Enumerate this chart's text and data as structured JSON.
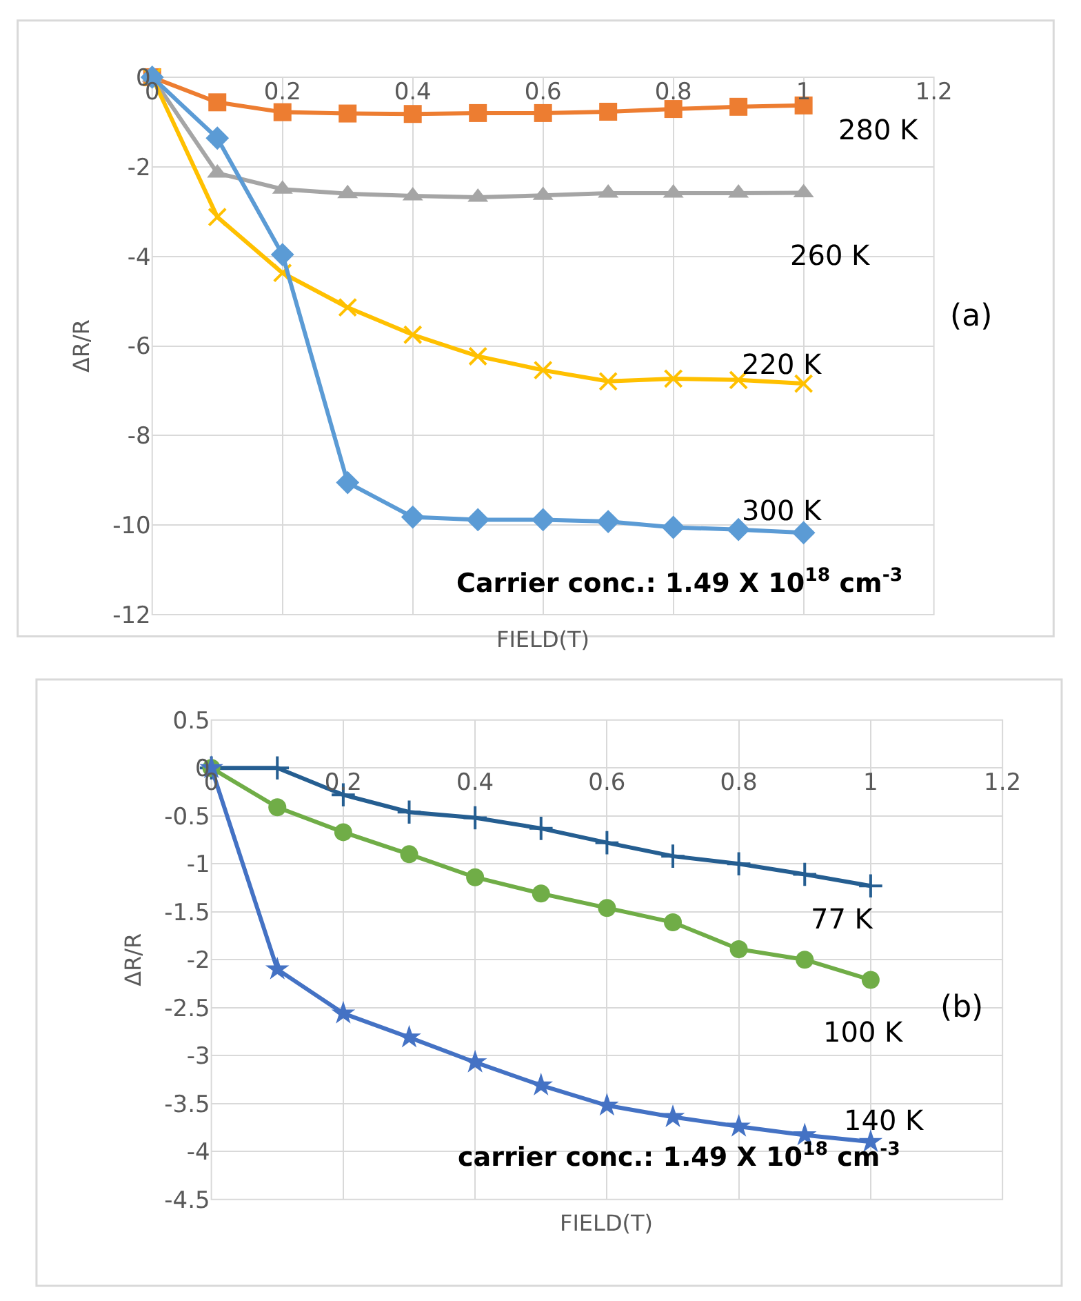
{
  "chart_data": [
    {
      "type": "line",
      "xlabel": "FIELD(T)",
      "ylabel": "ΔR/R",
      "x": [
        0,
        0.1,
        0.2,
        0.3,
        0.4,
        0.5,
        0.6,
        0.7,
        0.8,
        0.9,
        1.0
      ],
      "xlim": [
        0,
        1.2
      ],
      "xticks": [
        0,
        0.2,
        0.4,
        0.6,
        0.8,
        1,
        1.2
      ],
      "ylim": [
        -12,
        0
      ],
      "yticks": [
        -12,
        -10,
        -8,
        -6,
        -4,
        -2,
        0
      ],
      "grid": true,
      "line_style": "solid",
      "annotations": [
        "(a)",
        "Carrier conc.: 1.49 X 10$^{18}$ cm$^{-3}$"
      ],
      "series": [
        {
          "name": "280 K",
          "color": "#ed7d31",
          "marker": "square",
          "values": [
            0,
            -0.56,
            -0.78,
            -0.81,
            -0.82,
            -0.8,
            -0.8,
            -0.77,
            -0.71,
            -0.66,
            -0.63
          ]
        },
        {
          "name": "260 K",
          "color": "#a5a5a5",
          "marker": "triangle",
          "values": [
            0,
            -2.14,
            -2.5,
            -2.6,
            -2.65,
            -2.68,
            -2.64,
            -2.59,
            -2.59,
            -2.59,
            -2.58
          ]
        },
        {
          "name": "220 K",
          "color": "#ffc000",
          "marker": "cross",
          "values": [
            0,
            -3.12,
            -4.37,
            -5.14,
            -5.75,
            -6.23,
            -6.54,
            -6.79,
            -6.73,
            -6.76,
            -6.84
          ]
        },
        {
          "name": "300 K",
          "color": "#5b9bd5",
          "marker": "diamond",
          "values": [
            0,
            -1.36,
            -3.96,
            -9.05,
            -9.82,
            -9.88,
            -9.88,
            -9.92,
            -10.05,
            -10.1,
            -10.17
          ]
        }
      ]
    },
    {
      "type": "line",
      "xlabel": "FIELD(T)",
      "ylabel": "ΔR/R",
      "x": [
        0,
        0.1,
        0.2,
        0.3,
        0.4,
        0.5,
        0.6,
        0.7,
        0.8,
        0.9,
        1.0
      ],
      "xlim": [
        0,
        1.2
      ],
      "xticks": [
        0,
        0.2,
        0.4,
        0.6,
        0.8,
        1,
        1.2
      ],
      "ylim": [
        -4.5,
        0.5
      ],
      "yticks": [
        -4.5,
        -4,
        -3.5,
        -3,
        -2.5,
        -2,
        -1.5,
        -1,
        -0.5,
        0,
        0.5
      ],
      "grid": true,
      "line_style": "solid",
      "annotations": [
        "(b)",
        "carrier conc.: 1.49 X 10$^{18}$ cm$^{-3}$"
      ],
      "series": [
        {
          "name": "77 K",
          "color": "#255e91",
          "marker": "cross",
          "values": [
            0,
            0,
            -0.28,
            -0.46,
            -0.52,
            -0.63,
            -0.78,
            -0.92,
            -1.0,
            -1.11,
            -1.23
          ]
        },
        {
          "name": "100 K",
          "color": "#70ad47",
          "marker": "circle",
          "values": [
            0,
            -0.41,
            -0.67,
            -0.9,
            -1.14,
            -1.31,
            -1.46,
            -1.61,
            -1.89,
            -2.0,
            -2.21
          ]
        },
        {
          "name": "140 K",
          "color": "#4472c4",
          "marker": "star",
          "values": [
            0,
            -2.1,
            -2.56,
            -2.81,
            -3.07,
            -3.31,
            -3.52,
            -3.64,
            -3.74,
            -3.83,
            -3.9
          ]
        }
      ]
    }
  ]
}
